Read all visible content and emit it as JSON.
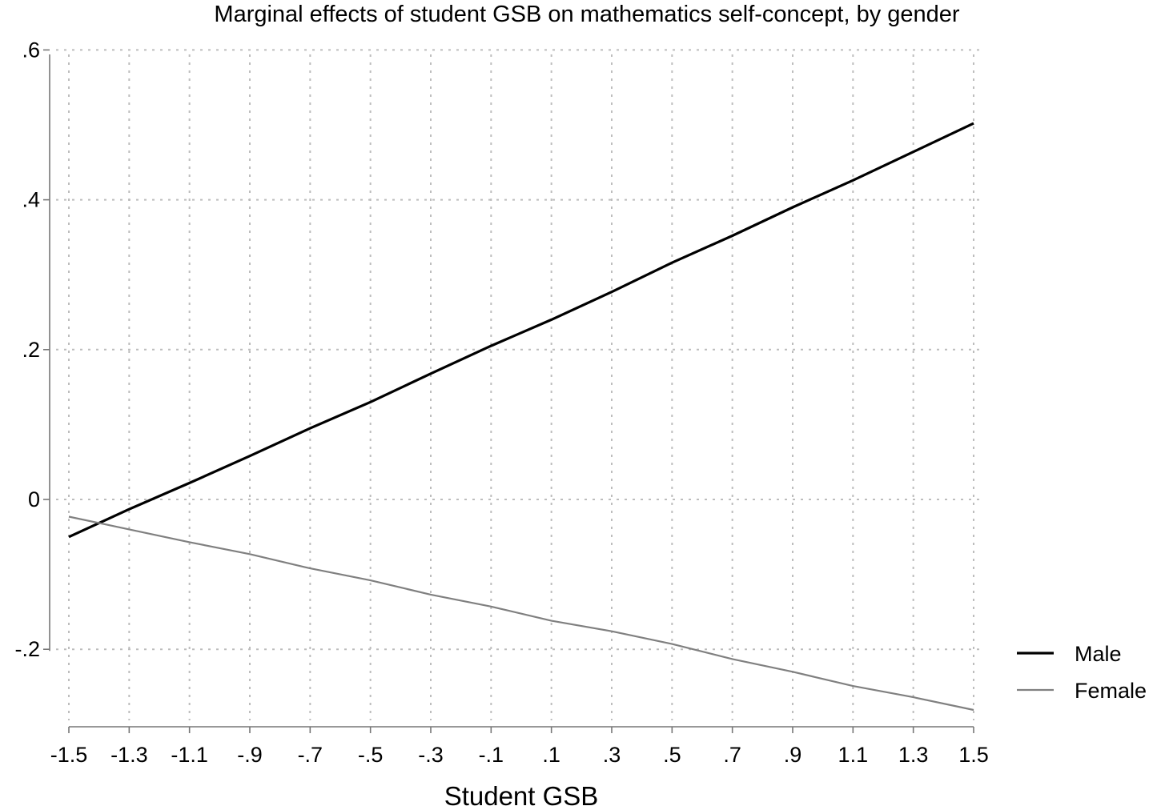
{
  "chart_data": {
    "type": "line",
    "title": "Marginal effects of student GSB on mathematics self-concept, by gender",
    "xlabel": "Student GSB",
    "ylabel": "",
    "x_ticks": [
      -1.5,
      -1.3,
      -1.1,
      -0.9,
      -0.7,
      -0.5,
      -0.3,
      -0.1,
      0.1,
      0.3,
      0.5,
      0.7,
      0.9,
      1.1,
      1.3,
      1.5
    ],
    "x_tick_labels": [
      "-1.5",
      "-1.3",
      "-1.1",
      "-.9",
      "-.7",
      "-.5",
      "-.3",
      "-.1",
      ".1",
      ".3",
      ".5",
      ".7",
      ".9",
      "1.1",
      "1.3",
      "1.5"
    ],
    "y_ticks": [
      -0.2,
      0,
      0.2,
      0.4,
      0.6
    ],
    "y_tick_labels": [
      "-.2",
      "0",
      ".2",
      ".4",
      ".6"
    ],
    "xlim": [
      -1.5,
      1.5
    ],
    "ylim": [
      -0.3,
      0.6
    ],
    "grid": true,
    "legend_position": "right",
    "x": [
      -1.5,
      -1.3,
      -1.1,
      -0.9,
      -0.7,
      -0.5,
      -0.3,
      -0.1,
      0.1,
      0.3,
      0.5,
      0.7,
      0.9,
      1.1,
      1.3,
      1.5
    ],
    "series": [
      {
        "name": "Male",
        "color": "#000000",
        "values": [
          -0.05,
          -0.013,
          0.022,
          0.058,
          0.095,
          0.13,
          0.168,
          0.205,
          0.24,
          0.277,
          0.316,
          0.352,
          0.39,
          0.426,
          0.464,
          0.502
        ]
      },
      {
        "name": "Female",
        "color": "#808080",
        "values": [
          -0.023,
          -0.04,
          -0.057,
          -0.073,
          -0.092,
          -0.108,
          -0.127,
          -0.143,
          -0.162,
          -0.176,
          -0.193,
          -0.213,
          -0.23,
          -0.249,
          -0.264,
          -0.281
        ]
      }
    ]
  }
}
